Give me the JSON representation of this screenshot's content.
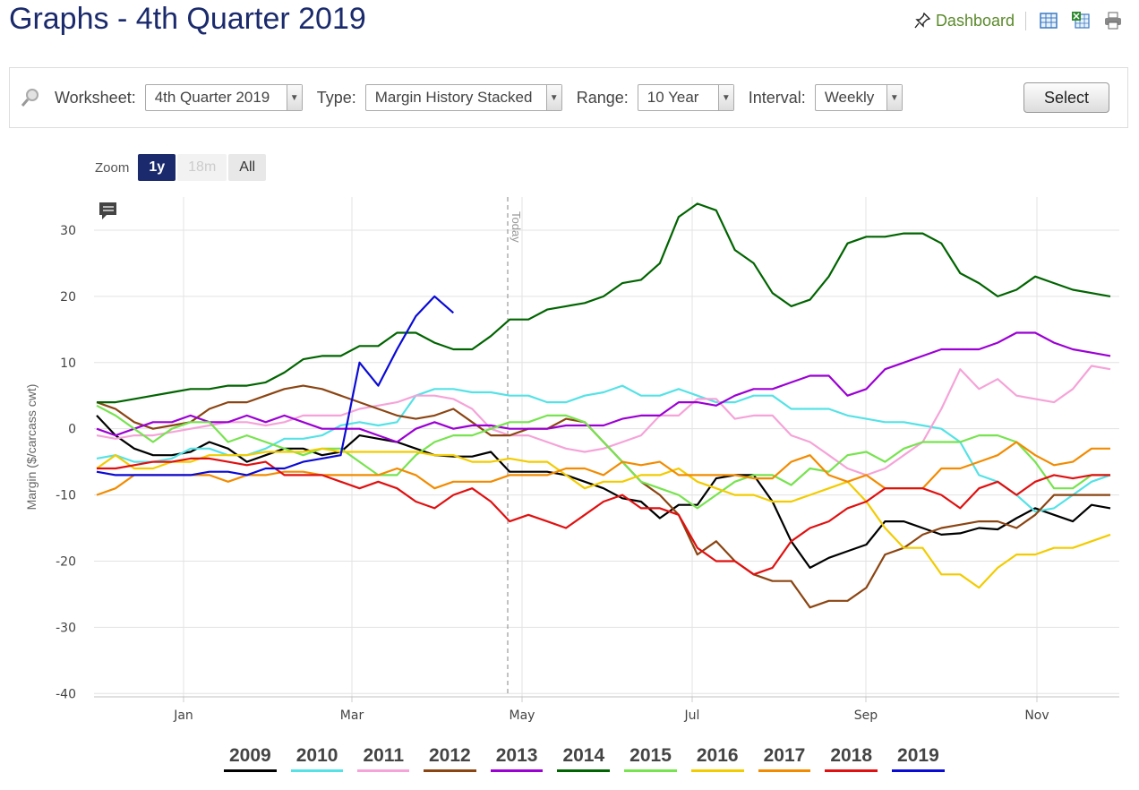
{
  "page": {
    "title": "Graphs - 4th Quarter 2019",
    "dashboard_label": "Dashboard"
  },
  "toolbar": {
    "worksheet_label": "Worksheet:",
    "worksheet_value": "4th Quarter 2019",
    "type_label": "Type:",
    "type_value": "Margin History Stacked",
    "range_label": "Range:",
    "range_value": "10 Year",
    "interval_label": "Interval:",
    "interval_value": "Weekly",
    "select_label": "Select"
  },
  "zoom": {
    "label": "Zoom",
    "buttons": [
      "1y",
      "18m",
      "All"
    ],
    "active": "1y",
    "disabled": [
      "18m"
    ]
  },
  "chart_data": {
    "type": "line",
    "ylabel": "Margin ($/carcass cwt)",
    "ylim": [
      -40,
      35
    ],
    "yticks": [
      30,
      20,
      10,
      0,
      -10,
      -20,
      -30,
      -40
    ],
    "x_tick_labels": [
      "Jan",
      "Mar",
      "May",
      "Jul",
      "Sep",
      "Nov"
    ],
    "today_label": "Today",
    "grid": "on",
    "legend_position": "bottom",
    "series": [
      {
        "name": "2009",
        "color": "#000000",
        "values": [
          2,
          -1,
          -3,
          -4,
          -4,
          -3.5,
          -2,
          -3,
          -5,
          -4,
          -3,
          -3,
          -4,
          -3.5,
          -1,
          -1.5,
          -2,
          -3,
          -4,
          -4.2,
          -4.2,
          -3.5,
          -6.5,
          -6.5,
          -6.5,
          -7,
          -8,
          -9,
          -10.5,
          -11,
          -13.5,
          -11.5,
          -11.5,
          -7.5,
          -7,
          -7,
          -11,
          -17,
          -21,
          -19.5,
          -18.5,
          -17.5,
          -14,
          -14,
          -15,
          -16,
          -15.8,
          -15,
          -15.2,
          -13.5,
          -12,
          -13,
          -14,
          -11.5,
          -12
        ]
      },
      {
        "name": "2010",
        "color": "#55e2e6",
        "values": [
          -4.5,
          -4,
          -5,
          -5,
          -4.5,
          -3,
          -3,
          -4,
          -4,
          -3,
          -1.5,
          -1.5,
          -1,
          0.5,
          1,
          0.5,
          1,
          5,
          6,
          6,
          5.5,
          5.5,
          5,
          5,
          4,
          4,
          5,
          5.5,
          6.5,
          5,
          5,
          6,
          5,
          4,
          4,
          5,
          5,
          3,
          3,
          3,
          2,
          1.5,
          1,
          1,
          0.5,
          0,
          -2,
          -7,
          -8,
          -10,
          -12.5,
          -12,
          -10,
          -8,
          -7
        ]
      },
      {
        "name": "2011",
        "color": "#f5a3d8",
        "values": [
          -1,
          -1.5,
          -1,
          -1,
          -0.5,
          0,
          0.5,
          1,
          1,
          0.5,
          1,
          2,
          2,
          2,
          3,
          3.5,
          4,
          5,
          5,
          4.5,
          3,
          0,
          -1,
          -1,
          -2,
          -3,
          -3.5,
          -3,
          -2,
          -1,
          2,
          2,
          4.5,
          4.5,
          1.5,
          2,
          2,
          -1,
          -2,
          -4,
          -6,
          -7,
          -6,
          -4,
          -2,
          3,
          9,
          6,
          7.5,
          5,
          4.5,
          4,
          6,
          9.5,
          9
        ]
      },
      {
        "name": "2012",
        "color": "#8b4513",
        "values": [
          4,
          3,
          1,
          0,
          0.5,
          1,
          3,
          4,
          4,
          5,
          6,
          6.5,
          6,
          5,
          4,
          3,
          2,
          1.5,
          2,
          3,
          1,
          -1,
          -1,
          0,
          0,
          1.5,
          1,
          -2,
          -5,
          -8,
          -10,
          -13,
          -19,
          -17,
          -20,
          -22,
          -23,
          -23,
          -27,
          -26,
          -26,
          -24,
          -19,
          -18,
          -16,
          -15,
          -14.5,
          -14,
          -14,
          -15,
          -13,
          -10,
          -10,
          -10,
          -10
        ]
      },
      {
        "name": "2013",
        "color": "#9b00d4",
        "values": [
          0,
          -1,
          0,
          1,
          1,
          2,
          1,
          1,
          2,
          1,
          2,
          1,
          0,
          0,
          0,
          -1,
          -2,
          0,
          1,
          0,
          0.5,
          0.5,
          0,
          0,
          0,
          0.5,
          0.5,
          0.5,
          1.5,
          2,
          2,
          4,
          4,
          3.5,
          5,
          6,
          6,
          7,
          8,
          8,
          5,
          6,
          9,
          10,
          11,
          12,
          12,
          12,
          13,
          14.5,
          14.5,
          13,
          12,
          11.5,
          11
        ]
      },
      {
        "name": "2014",
        "color": "#006400",
        "values": [
          4,
          4,
          4.5,
          5,
          5.5,
          6,
          6,
          6.5,
          6.5,
          7,
          8.5,
          10.5,
          11,
          11,
          12.5,
          12.5,
          14.5,
          14.5,
          13,
          12,
          12,
          14,
          16.5,
          16.5,
          18,
          18.5,
          19,
          20,
          22,
          22.5,
          25,
          32,
          34,
          33,
          27,
          25,
          20.5,
          18.5,
          19.5,
          23,
          28,
          29,
          29,
          29.5,
          29.5,
          28,
          23.5,
          22,
          20,
          21,
          23,
          22,
          21,
          20.5,
          20
        ]
      },
      {
        "name": "2015",
        "color": "#77e34f",
        "values": [
          3.5,
          2,
          0,
          -2,
          0,
          1,
          1,
          -2,
          -1,
          -2,
          -3,
          -4,
          -3,
          -3,
          -5,
          -7,
          -7,
          -4,
          -2,
          -1,
          -1,
          0,
          1,
          1,
          2,
          2,
          1,
          -2,
          -5,
          -8,
          -9,
          -10,
          -12,
          -10,
          -8,
          -7,
          -7,
          -8.5,
          -6,
          -6.5,
          -4,
          -3.5,
          -5,
          -3,
          -2,
          -2,
          -2,
          -1,
          -1,
          -2,
          -5,
          -9,
          -9,
          -7,
          -7
        ]
      },
      {
        "name": "2016",
        "color": "#f2cc00",
        "values": [
          -6,
          -4,
          -6,
          -6,
          -5,
          -5,
          -4,
          -4,
          -4,
          -3.5,
          -3.5,
          -3.5,
          -3,
          -3.5,
          -3.5,
          -3.5,
          -3.5,
          -3.5,
          -4,
          -4,
          -5,
          -5,
          -4.5,
          -5,
          -5,
          -7,
          -9,
          -8,
          -8,
          -7,
          -7,
          -6,
          -8,
          -9,
          -10,
          -10,
          -11,
          -11,
          -10,
          -9,
          -8,
          -11,
          -15,
          -18,
          -18,
          -22,
          -22,
          -24,
          -21,
          -19,
          -19,
          -18,
          -18,
          -17,
          -16
        ]
      },
      {
        "name": "2017",
        "color": "#f28b00",
        "values": [
          -10,
          -9,
          -7,
          -7,
          -7,
          -7,
          -7,
          -8,
          -7,
          -7,
          -6.5,
          -6.5,
          -7,
          -7,
          -7,
          -7,
          -6,
          -7,
          -9,
          -8,
          -8,
          -8,
          -7,
          -7,
          -7,
          -6,
          -6,
          -7,
          -5,
          -5.5,
          -5,
          -7,
          -7,
          -7,
          -7,
          -7.5,
          -7.5,
          -5,
          -4,
          -7,
          -8,
          -7,
          -9,
          -9,
          -9,
          -6,
          -6,
          -5,
          -4,
          -2,
          -4,
          -5.5,
          -5,
          -3,
          -3
        ]
      },
      {
        "name": "2018",
        "color": "#e01010",
        "values": [
          -6,
          -6,
          -5.5,
          -5,
          -5,
          -4.5,
          -4.5,
          -5,
          -5.5,
          -5,
          -7,
          -7,
          -7,
          -8,
          -9,
          -8,
          -9,
          -11,
          -12,
          -10,
          -9,
          -11,
          -14,
          -13,
          -14,
          -15,
          -13,
          -11,
          -10,
          -12,
          -12,
          -13,
          -18,
          -20,
          -20,
          -22,
          -21,
          -17,
          -15,
          -14,
          -12,
          -11,
          -9,
          -9,
          -9,
          -10,
          -12,
          -9,
          -8,
          -10,
          -8,
          -7,
          -7.5,
          -7,
          -7
        ]
      },
      {
        "name": "2019",
        "color": "#0a0ad6",
        "values": [
          -6.5,
          -7,
          -7,
          -7,
          -7,
          -7,
          -6.5,
          -6.5,
          -7,
          -6,
          -6,
          -5,
          -4.5,
          -4,
          10,
          6.5,
          12,
          17,
          20,
          17.5
        ]
      }
    ]
  }
}
